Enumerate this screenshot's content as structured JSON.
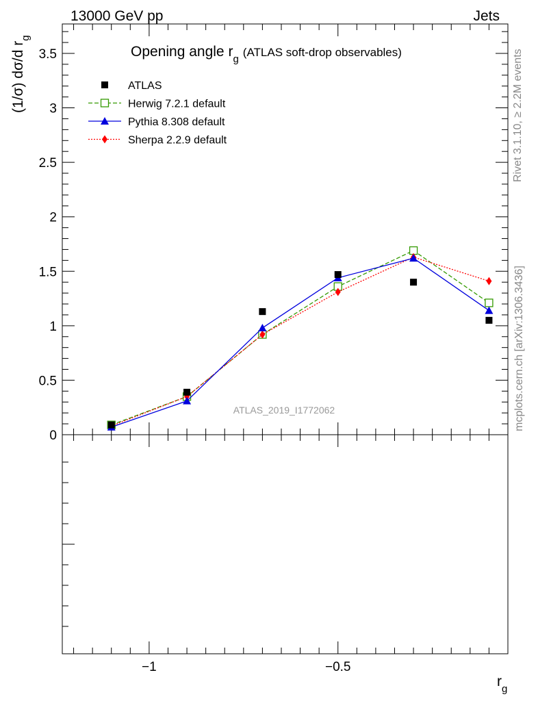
{
  "header": {
    "energy_label": "13000 GeV pp",
    "process_label": "Jets",
    "rivet_label": "Rivet 3.1.10, ≥ 2.2M events",
    "mcplots_label": "mcplots.cern.ch [arXiv:1306.3436]",
    "analysis_label": "ATLAS_2019_I1772062"
  },
  "chart_data": {
    "type": "line",
    "title_main": "Opening angle r",
    "title_sub": "g",
    "title_extra": "(ATLAS soft-drop observables)",
    "ylabel_main": "(1/σ) dσ/d r",
    "ylabel_sub": "g",
    "xlabel_main": "r",
    "xlabel_sub": "g",
    "xlim": [
      -1.23,
      -0.05
    ],
    "ylim": [
      0,
      3.77
    ],
    "x_ticks": [
      -1,
      -0.5
    ],
    "x_tick_labels": [
      "−1",
      "−0.5"
    ],
    "y_ticks": [
      0,
      0.5,
      1,
      1.5,
      2,
      2.5,
      3,
      3.5
    ],
    "y_tick_labels": [
      "0",
      "0.5",
      "1",
      "1.5",
      "2",
      "2.5",
      "3",
      "3.5"
    ],
    "x": [
      -1.1,
      -0.9,
      -0.7,
      -0.5,
      -0.3,
      -0.1
    ],
    "series": [
      {
        "name": "ATLAS",
        "type": "data",
        "color": "#000000",
        "marker": "square-filled",
        "values": [
          0.09,
          0.39,
          1.13,
          1.47,
          1.4,
          1.05
        ]
      },
      {
        "name": "Herwig 7.2.1 default",
        "type": "line",
        "color": "#339900",
        "dash": "dashed",
        "marker": "square-open",
        "values": [
          0.09,
          0.35,
          0.92,
          1.36,
          1.69,
          1.21
        ]
      },
      {
        "name": "Pythia 8.308 default",
        "type": "line",
        "color": "#0000dd",
        "dash": "solid",
        "marker": "triangle",
        "values": [
          0.07,
          0.31,
          0.98,
          1.44,
          1.62,
          1.14
        ]
      },
      {
        "name": "Sherpa 2.2.9 default",
        "type": "line",
        "color": "#ff0000",
        "dash": "dotted",
        "marker": "diamond",
        "values": [
          0.08,
          0.35,
          0.92,
          1.31,
          1.63,
          1.41
        ]
      }
    ]
  }
}
